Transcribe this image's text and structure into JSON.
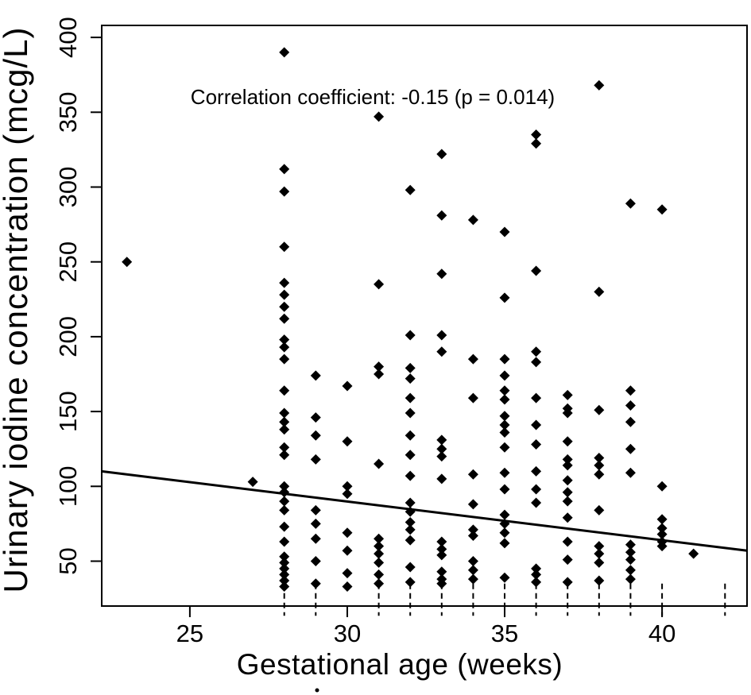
{
  "chart_data": {
    "type": "scatter",
    "title": "",
    "xlabel": "Gestational age (weeks)",
    "ylabel": "Urinary iodine concentration (mcg/L)",
    "annotation": {
      "text": "Correlation coefficient: -0.15 (p = 0.014)",
      "x": 30.8,
      "y": 361
    },
    "stats": {
      "correlation_coefficient": -0.15,
      "p_value": 0.014
    },
    "xlim": [
      22.2,
      42.7
    ],
    "ylim": [
      20,
      408
    ],
    "xticks": [
      25,
      30,
      35,
      40
    ],
    "yticks": [
      50,
      100,
      150,
      200,
      250,
      300,
      350,
      400
    ],
    "grid": false,
    "legend_position": "none",
    "marker": "filled-diamond",
    "point_color": "#000000",
    "line_color": "#000000",
    "trend_line": {
      "x": [
        22.2,
        42.7
      ],
      "y": [
        110,
        57
      ]
    },
    "rug_weeks": [
      28,
      29,
      31,
      32,
      33,
      34,
      35,
      36,
      37,
      38,
      39,
      40,
      42
    ],
    "points": [
      [
        23,
        250
      ],
      [
        27,
        103
      ],
      [
        28,
        390
      ],
      [
        28,
        312
      ],
      [
        28,
        297
      ],
      [
        28,
        260
      ],
      [
        28,
        236
      ],
      [
        28,
        228
      ],
      [
        28,
        220
      ],
      [
        28,
        212
      ],
      [
        28,
        198
      ],
      [
        28,
        193
      ],
      [
        28,
        185
      ],
      [
        28,
        164
      ],
      [
        28,
        149
      ],
      [
        28,
        143
      ],
      [
        28,
        138
      ],
      [
        28,
        126
      ],
      [
        28,
        121
      ],
      [
        28,
        100
      ],
      [
        28,
        96
      ],
      [
        28,
        90
      ],
      [
        28,
        84
      ],
      [
        28,
        73
      ],
      [
        28,
        63
      ],
      [
        28,
        53
      ],
      [
        28,
        49
      ],
      [
        28,
        45
      ],
      [
        28,
        41
      ],
      [
        28,
        37
      ],
      [
        28,
        33
      ],
      [
        29,
        174
      ],
      [
        29,
        146
      ],
      [
        29,
        134
      ],
      [
        29,
        118
      ],
      [
        29,
        84
      ],
      [
        29,
        75
      ],
      [
        29,
        65
      ],
      [
        29,
        50
      ],
      [
        29,
        35
      ],
      [
        30,
        167
      ],
      [
        30,
        130
      ],
      [
        30,
        100
      ],
      [
        30,
        95
      ],
      [
        30,
        69
      ],
      [
        30,
        57
      ],
      [
        30,
        42
      ],
      [
        30,
        33
      ],
      [
        31,
        347
      ],
      [
        31,
        235
      ],
      [
        31,
        180
      ],
      [
        31,
        175
      ],
      [
        31,
        115
      ],
      [
        31,
        65
      ],
      [
        31,
        60
      ],
      [
        31,
        55
      ],
      [
        31,
        49
      ],
      [
        31,
        41
      ],
      [
        31,
        35
      ],
      [
        32,
        298
      ],
      [
        32,
        201
      ],
      [
        32,
        179
      ],
      [
        32,
        172
      ],
      [
        32,
        159
      ],
      [
        32,
        149
      ],
      [
        32,
        134
      ],
      [
        32,
        121
      ],
      [
        32,
        107
      ],
      [
        32,
        89
      ],
      [
        32,
        83
      ],
      [
        32,
        76
      ],
      [
        32,
        71
      ],
      [
        32,
        64
      ],
      [
        32,
        46
      ],
      [
        32,
        36
      ],
      [
        33,
        322
      ],
      [
        33,
        281
      ],
      [
        33,
        242
      ],
      [
        33,
        201
      ],
      [
        33,
        190
      ],
      [
        33,
        131
      ],
      [
        33,
        125
      ],
      [
        33,
        120
      ],
      [
        33,
        105
      ],
      [
        33,
        63
      ],
      [
        33,
        58
      ],
      [
        33,
        54
      ],
      [
        33,
        43
      ],
      [
        33,
        38
      ],
      [
        33,
        35
      ],
      [
        34,
        278
      ],
      [
        34,
        185
      ],
      [
        34,
        159
      ],
      [
        34,
        108
      ],
      [
        34,
        88
      ],
      [
        34,
        71
      ],
      [
        34,
        67
      ],
      [
        34,
        50
      ],
      [
        34,
        44
      ],
      [
        34,
        38
      ],
      [
        35,
        270
      ],
      [
        35,
        226
      ],
      [
        35,
        185
      ],
      [
        35,
        174
      ],
      [
        35,
        164
      ],
      [
        35,
        158
      ],
      [
        35,
        147
      ],
      [
        35,
        141
      ],
      [
        35,
        136
      ],
      [
        35,
        126
      ],
      [
        35,
        109
      ],
      [
        35,
        98
      ],
      [
        35,
        81
      ],
      [
        35,
        75
      ],
      [
        35,
        69
      ],
      [
        35,
        62
      ],
      [
        35,
        39
      ],
      [
        36,
        335
      ],
      [
        36,
        329
      ],
      [
        36,
        244
      ],
      [
        36,
        190
      ],
      [
        36,
        183
      ],
      [
        36,
        159
      ],
      [
        36,
        141
      ],
      [
        36,
        128
      ],
      [
        36,
        110
      ],
      [
        36,
        98
      ],
      [
        36,
        89
      ],
      [
        36,
        45
      ],
      [
        36,
        41
      ],
      [
        36,
        36
      ],
      [
        37,
        161
      ],
      [
        37,
        152
      ],
      [
        37,
        149
      ],
      [
        37,
        130
      ],
      [
        37,
        118
      ],
      [
        37,
        114
      ],
      [
        37,
        104
      ],
      [
        37,
        96
      ],
      [
        37,
        90
      ],
      [
        37,
        79
      ],
      [
        37,
        63
      ],
      [
        37,
        51
      ],
      [
        37,
        36
      ],
      [
        38,
        368
      ],
      [
        38,
        230
      ],
      [
        38,
        151
      ],
      [
        38,
        119
      ],
      [
        38,
        114
      ],
      [
        38,
        108
      ],
      [
        38,
        84
      ],
      [
        38,
        60
      ],
      [
        38,
        55
      ],
      [
        38,
        49
      ],
      [
        38,
        37
      ],
      [
        39,
        289
      ],
      [
        39,
        164
      ],
      [
        39,
        154
      ],
      [
        39,
        143
      ],
      [
        39,
        125
      ],
      [
        39,
        109
      ],
      [
        39,
        61
      ],
      [
        39,
        56
      ],
      [
        39,
        51
      ],
      [
        39,
        44
      ],
      [
        39,
        38
      ],
      [
        40,
        285
      ],
      [
        40,
        100
      ],
      [
        40,
        78
      ],
      [
        40,
        72
      ],
      [
        40,
        68
      ],
      [
        40,
        63
      ],
      [
        40,
        60
      ],
      [
        41,
        55
      ]
    ]
  }
}
